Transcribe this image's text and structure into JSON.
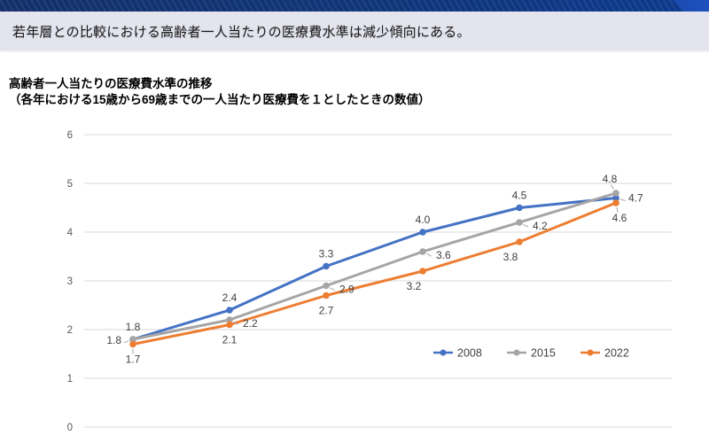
{
  "top_bar": {
    "accent_color": "#1d4fb8"
  },
  "banner": {
    "text": "若年層との比較における高齢者一人当たりの医療費水準は減少傾向にある。",
    "bg": "#e3e4ee"
  },
  "header": {
    "title": "高齢者一人当たりの医療費水準の推移",
    "subtitle": "（各年における15歳から69歳までの一人当たり医療費を１としたときの数値）"
  },
  "chart_data": {
    "type": "line",
    "title": "高齢者一人当たりの医療費水準の推移",
    "subtitle": "（各年における15歳から69歳までの一人当たり医療費を１としたときの数値）",
    "num_points": 6,
    "x_tick_labels": [],
    "x_tick_labels_visible": false,
    "ylim": [
      0,
      6
    ],
    "yticks": [
      0,
      1,
      2,
      3,
      4,
      5,
      6
    ],
    "grid": true,
    "data_labels": true,
    "legend_position": "inside-bottom-right",
    "colors": {
      "grid": "#d9d9d9",
      "axis_text": "#595959",
      "label_text": "#404040",
      "leader": "#a6a6a6"
    },
    "series": [
      {
        "name": "2008",
        "color": "#4472C4",
        "values": [
          1.8,
          2.4,
          3.3,
          4.0,
          4.5,
          4.7
        ],
        "label_placements": [
          "above",
          "above",
          "above",
          "above",
          "above",
          "right"
        ]
      },
      {
        "name": "2015",
        "color": "#A5A5A5",
        "values": [
          1.8,
          2.2,
          2.9,
          3.6,
          4.2,
          4.8
        ],
        "label_placements": [
          "left-leader",
          "right-leader",
          "right-leader",
          "right-leader",
          "right-leader",
          "above-leader"
        ]
      },
      {
        "name": "2022",
        "color": "#ED7D31",
        "values": [
          1.7,
          2.1,
          2.7,
          3.2,
          3.8,
          4.6
        ],
        "label_placements": [
          "below-leader",
          "below",
          "below",
          "below-left",
          "below-left",
          "below-right"
        ]
      }
    ]
  }
}
